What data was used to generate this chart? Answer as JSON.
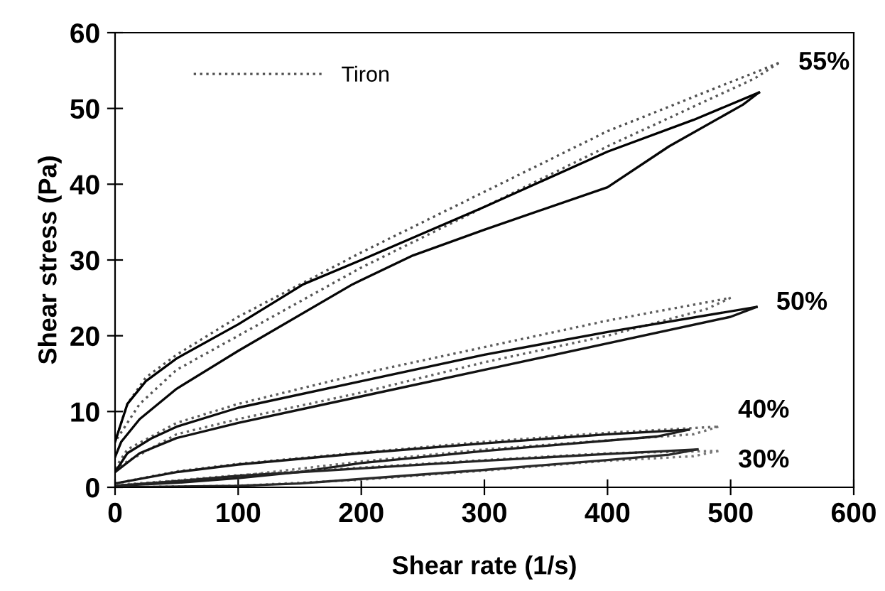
{
  "chart_data": {
    "type": "line",
    "xlabel": "Shear rate (1/s)",
    "ylabel": "Shear stress (Pa)",
    "xlim": [
      0,
      600
    ],
    "ylim": [
      0,
      60
    ],
    "xticks": [
      0,
      100,
      200,
      300,
      400,
      500,
      600
    ],
    "yticks": [
      0,
      10,
      20,
      30,
      40,
      50,
      60
    ],
    "grid": false,
    "legend": "top left",
    "marker": "none",
    "series": [
      {
        "name": "Tiron",
        "color": "#505050",
        "line_style": "dotted",
        "x": [
          0,
          10,
          25,
          50,
          100,
          200,
          300,
          400,
          539
        ],
        "values": [
          6,
          11,
          14.5,
          17.5,
          22.5,
          31,
          39,
          47,
          56
        ]
      },
      {
        "color": "#565656",
        "line_style": "dotted",
        "x": [
          539,
          520,
          400,
          300,
          200,
          100,
          50,
          20,
          0
        ],
        "values": [
          56,
          54,
          45,
          37,
          29,
          20,
          15.5,
          11,
          6
        ]
      },
      {
        "color": "#000000",
        "line_style": "solid",
        "x": [
          0,
          10,
          25,
          50,
          100,
          153,
          200,
          300,
          400,
          470,
          523
        ],
        "values": [
          6,
          11,
          14,
          17,
          21.5,
          26.8,
          30,
          37,
          44.3,
          48.5,
          52.1
        ]
      },
      {
        "color": "#060606",
        "line_style": "solid",
        "x": [
          523,
          510,
          450,
          400,
          300,
          242,
          193,
          100,
          50,
          20,
          5,
          0
        ],
        "values": [
          52.1,
          50.5,
          45,
          39.6,
          34,
          30.6,
          26.8,
          18,
          13,
          9,
          6,
          4
        ]
      },
      {
        "color": "#5c5c5c",
        "line_style": "dotted",
        "x": [
          0,
          10,
          50,
          100,
          200,
          300,
          400,
          500
        ],
        "values": [
          2.5,
          5,
          8.5,
          11,
          15,
          18.5,
          22,
          25
        ]
      },
      {
        "color": "#626262",
        "line_style": "dotted",
        "x": [
          500,
          480,
          400,
          300,
          200,
          100,
          50,
          0
        ],
        "values": [
          25,
          23.5,
          20,
          16.5,
          12.5,
          9,
          7,
          2.5
        ]
      },
      {
        "color": "#0c0c0c",
        "line_style": "solid",
        "x": [
          0,
          10,
          30,
          50,
          100,
          200,
          300,
          400,
          521
        ],
        "values": [
          2,
          4.5,
          6.5,
          8,
          10.5,
          14,
          17.5,
          20.5,
          23.8
        ]
      },
      {
        "color": "#121212",
        "line_style": "solid",
        "x": [
          521,
          500,
          400,
          300,
          200,
          100,
          50,
          20,
          0
        ],
        "values": [
          23.8,
          22.5,
          19,
          15.5,
          12,
          8.5,
          6.5,
          4.5,
          2
        ]
      },
      {
        "color": "#686868",
        "line_style": "dotted",
        "x": [
          0,
          50,
          100,
          200,
          300,
          400,
          490
        ],
        "values": [
          0.5,
          2.1,
          3.1,
          4.6,
          6,
          7.2,
          8
        ]
      },
      {
        "color": "#6e6e6e",
        "line_style": "dotted",
        "x": [
          490,
          470,
          400,
          300,
          200,
          100,
          0
        ],
        "values": [
          8,
          7,
          6.2,
          5,
          3.4,
          1.5,
          0.2
        ]
      },
      {
        "color": "#181818",
        "line_style": "solid",
        "x": [
          0,
          50,
          100,
          200,
          300,
          400,
          466
        ],
        "values": [
          0.5,
          2,
          3,
          4.5,
          5.8,
          7,
          7.6
        ]
      },
      {
        "color": "#1e1e1e",
        "line_style": "solid",
        "x": [
          466,
          440,
          300,
          200,
          149,
          100,
          50,
          0
        ],
        "values": [
          7.6,
          6.7,
          4.8,
          3.2,
          2,
          1.2,
          0.6,
          0.2
        ]
      },
      {
        "color": "#747474",
        "line_style": "dotted",
        "x": [
          0,
          50,
          100,
          200,
          300,
          400,
          490
        ],
        "values": [
          0.3,
          0.9,
          1.6,
          2.6,
          3.6,
          4.5,
          4.8
        ]
      },
      {
        "color": "#7a7a7a",
        "line_style": "dotted",
        "x": [
          490,
          470,
          400,
          300,
          200,
          100,
          0
        ],
        "values": [
          4.8,
          4.1,
          3.5,
          2.2,
          1,
          0.2,
          0
        ]
      },
      {
        "color": "#242424",
        "line_style": "solid",
        "x": [
          0,
          50,
          100,
          200,
          300,
          400,
          473
        ],
        "values": [
          0.2,
          0.8,
          1.5,
          2.5,
          3.5,
          4.4,
          5
        ]
      },
      {
        "color": "#2a2a2a",
        "line_style": "solid",
        "x": [
          473,
          450,
          400,
          300,
          200,
          150,
          100,
          0
        ],
        "values": [
          5,
          4.3,
          3.6,
          2.3,
          1.1,
          0.5,
          0.2,
          0
        ]
      }
    ],
    "annotations": [
      "55%",
      "50%",
      "40%",
      "30%"
    ]
  }
}
